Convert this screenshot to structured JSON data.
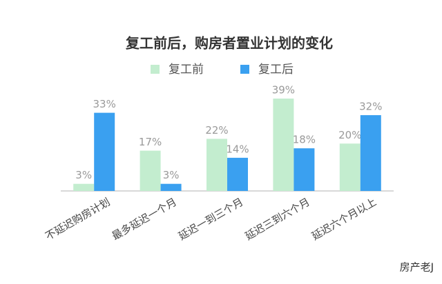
{
  "chart_data": {
    "type": "bar",
    "title": "复工前后，购房者置业计划的变化",
    "categories": [
      "不延迟购房计划",
      "最多延迟一个月",
      "延迟一到三个月",
      "延迟三到六个月",
      "延迟六个月以上"
    ],
    "series": [
      {
        "name": "复工前",
        "color": "#c3edcf",
        "values": [
          3,
          17,
          22,
          39,
          20
        ],
        "value_labels": [
          "3%",
          "17%",
          "22%",
          "39%",
          "20%"
        ]
      },
      {
        "name": "复工后",
        "color": "#3aa0f0",
        "values": [
          33,
          3,
          14,
          18,
          32
        ],
        "value_labels": [
          "33%",
          "3%",
          "14%",
          "18%",
          "32%"
        ]
      }
    ],
    "signature": "房产老J"
  }
}
